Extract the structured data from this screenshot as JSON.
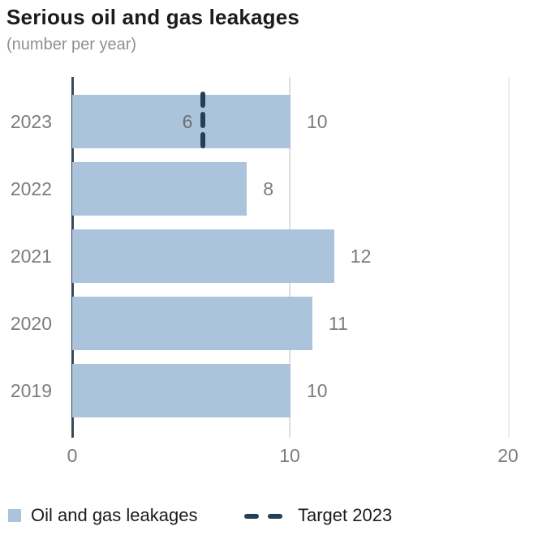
{
  "title": "Serious oil and gas leakages",
  "subtitle": "(number per year)",
  "chart_data": {
    "type": "bar",
    "orientation": "horizontal",
    "title": "Serious oil and gas leakages",
    "subtitle": "(number per year)",
    "series_name": "Oil and gas leakages",
    "categories": [
      "2023",
      "2022",
      "2021",
      "2020",
      "2019"
    ],
    "values": [
      10,
      8,
      12,
      11,
      10
    ],
    "bar_labels": [
      "10",
      "8",
      "12",
      "11",
      "10"
    ],
    "target": {
      "value": 6,
      "label": "6",
      "applies_to": "2023",
      "legend_label": "Target 2023",
      "style": "dashed-vertical-line"
    },
    "xlim": [
      0,
      20
    ],
    "xticks": [
      "0",
      "10",
      "20"
    ],
    "grid": "vertical gridlines at 10 and 20",
    "legend_position": "bottom"
  },
  "legend": {
    "bars_label": "Oil and gas leakages",
    "target_label": "Target 2023"
  },
  "colors": {
    "bar": "#abc4dc",
    "target": "#234059",
    "target_label": "#6e6e6e",
    "axis": "#3a4a5a",
    "grid_strong": "#dedede",
    "grid_faint": "#ececec",
    "text_dark": "#1b1b1b",
    "text_sub": "#8f8f8f",
    "text_gray": "#7c7c7c"
  }
}
